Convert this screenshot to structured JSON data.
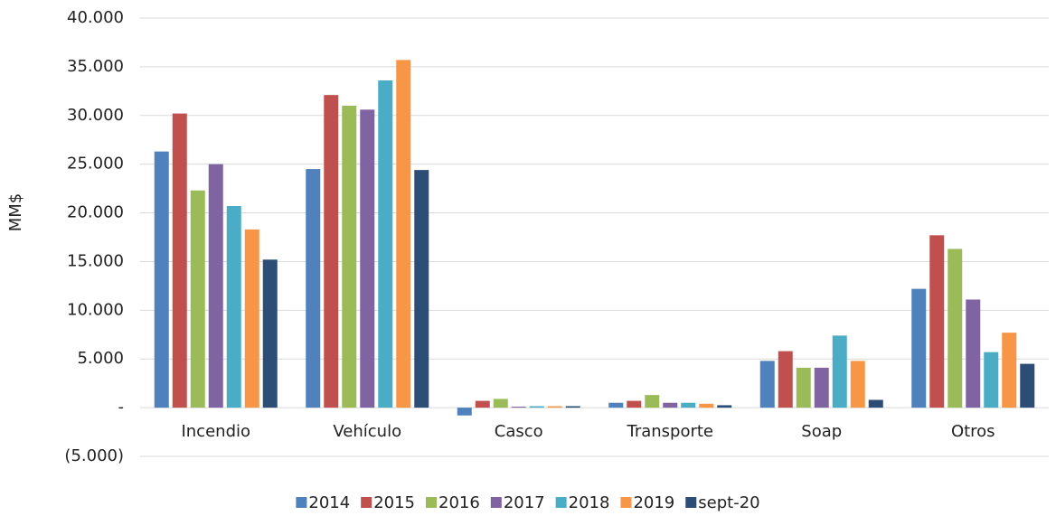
{
  "chart_data": {
    "type": "bar",
    "y_label": "MM$",
    "categories": [
      "Incendio",
      "Vehículo",
      "Casco",
      "Transporte",
      "Soap",
      "Otros"
    ],
    "series": [
      {
        "name": "2014",
        "color": "#4f81bd",
        "values": [
          26300,
          24500,
          -800,
          500,
          4800,
          12200
        ]
      },
      {
        "name": "2015",
        "color": "#c0504d",
        "values": [
          30200,
          32100,
          700,
          700,
          5800,
          17700
        ]
      },
      {
        "name": "2016",
        "color": "#9bbb59",
        "values": [
          22300,
          31000,
          900,
          1300,
          4100,
          16300
        ]
      },
      {
        "name": "2017",
        "color": "#8064a2",
        "values": [
          25000,
          30600,
          100,
          500,
          4100,
          11100
        ]
      },
      {
        "name": "2018",
        "color": "#4bacc6",
        "values": [
          20700,
          33600,
          150,
          500,
          7400,
          5700
        ]
      },
      {
        "name": "2019",
        "color": "#f79646",
        "values": [
          18300,
          35700,
          150,
          400,
          4800,
          7700
        ]
      },
      {
        "name": "sept-20",
        "color": "#2c4d75",
        "values": [
          15200,
          24400,
          150,
          250,
          800,
          4500
        ]
      }
    ],
    "ylim": [
      -5000,
      40000
    ],
    "yticks": [
      {
        "value": -5000,
        "label": "(5.000)"
      },
      {
        "value": 0,
        "label": "-"
      },
      {
        "value": 5000,
        "label": "5.000"
      },
      {
        "value": 10000,
        "label": "10.000"
      },
      {
        "value": 15000,
        "label": "15.000"
      },
      {
        "value": 20000,
        "label": "20.000"
      },
      {
        "value": 25000,
        "label": "25.000"
      },
      {
        "value": 30000,
        "label": "30.000"
      },
      {
        "value": 35000,
        "label": "35.000"
      },
      {
        "value": 40000,
        "label": "40.000"
      }
    ],
    "grid": true,
    "legend": "bottom"
  }
}
